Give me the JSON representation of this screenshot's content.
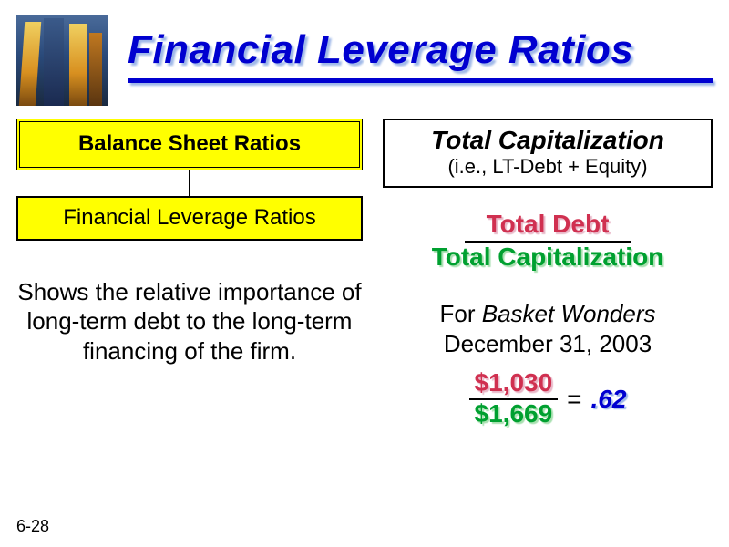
{
  "colors": {
    "title_blue": "#0000d0",
    "title_shadow": "#9fb8e8",
    "box_yellow": "#ffff00",
    "debt_pink": "#d03050",
    "debt_shadow": "#e8b8c8",
    "cap_green": "#00a030",
    "cap_shadow": "#a8e0b0",
    "background": "#ffffff",
    "border": "#000000"
  },
  "header": {
    "title": "Financial Leverage Ratios"
  },
  "left": {
    "box_top": "Balance Sheet Ratios",
    "box_bottom": "Financial Leverage Ratios",
    "description": "Shows the relative importance of long-term debt to the long-term financing of the firm."
  },
  "right": {
    "tc_title": "Total Capitalization",
    "tc_subtitle": "(i.e., LT-Debt + Equity)",
    "ratio_numerator": "Total Debt",
    "ratio_denominator": "Total Capitalization",
    "example_for": "For ",
    "example_company": "Basket Wonders",
    "example_date": "December 31, 2003",
    "calc_numerator": "$1,030",
    "calc_denominator": "$1,669",
    "calc_equals": "=",
    "calc_result": ".62"
  },
  "footer": {
    "page_number": "6-28"
  }
}
